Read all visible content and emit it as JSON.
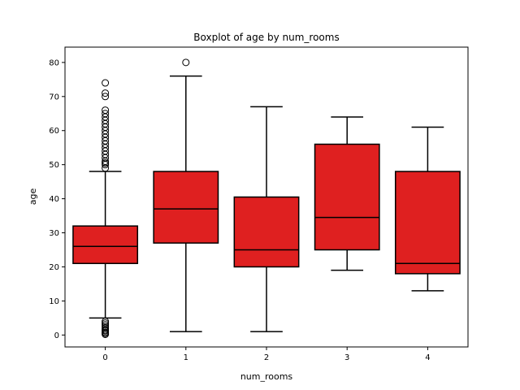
{
  "chart_data": {
    "type": "box",
    "title": "Boxplot of age by num_rooms",
    "xlabel": "num_rooms",
    "ylabel": "age",
    "ylim": [
      -3.5,
      84.5
    ],
    "yticks": [
      0,
      10,
      20,
      30,
      40,
      50,
      60,
      70,
      80
    ],
    "grid": false,
    "box_color": "#df2020",
    "categories": [
      "0",
      "1",
      "2",
      "3",
      "4"
    ],
    "boxes": [
      {
        "category": "0",
        "whisker_low": 5,
        "q1": 21,
        "median": 26,
        "q3": 32,
        "whisker_high": 48,
        "outliers": [
          0.2,
          0.5,
          0.8,
          1.2,
          1.5,
          2,
          2.5,
          3,
          3.5,
          4,
          49,
          50,
          50.5,
          51,
          52,
          53,
          54,
          55,
          56,
          57,
          58,
          59,
          60,
          61,
          62,
          63,
          64,
          65,
          66,
          70,
          71,
          74
        ]
      },
      {
        "category": "1",
        "whisker_low": 1,
        "q1": 27,
        "median": 37,
        "q3": 48,
        "whisker_high": 76,
        "outliers": [
          80
        ]
      },
      {
        "category": "2",
        "whisker_low": 1,
        "q1": 20,
        "median": 25,
        "q3": 40.5,
        "whisker_high": 67,
        "outliers": []
      },
      {
        "category": "3",
        "whisker_low": 19,
        "q1": 25,
        "median": 34.5,
        "q3": 56,
        "whisker_high": 64,
        "outliers": []
      },
      {
        "category": "4",
        "whisker_low": 13,
        "q1": 18,
        "median": 21,
        "q3": 48,
        "whisker_high": 61,
        "outliers": []
      }
    ]
  }
}
